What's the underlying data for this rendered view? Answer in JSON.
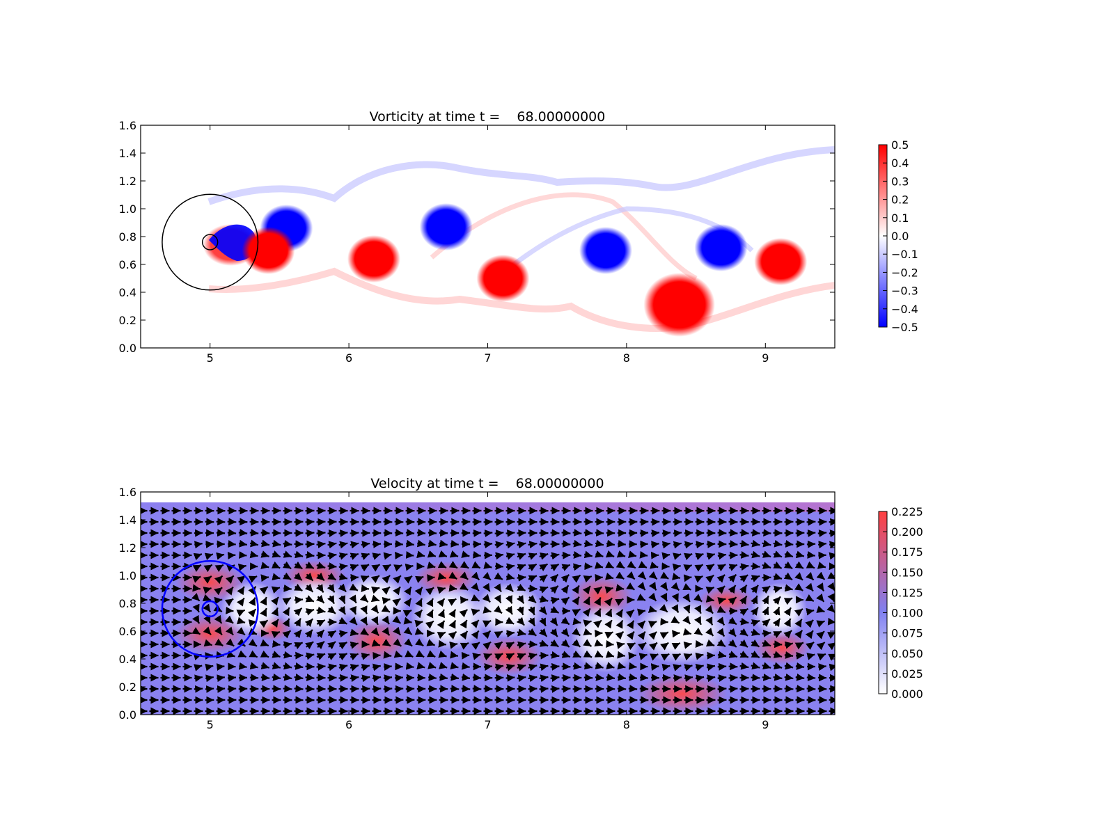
{
  "chart_data": [
    {
      "type": "heatmap",
      "title": "Vorticity at time t =    68.00000000",
      "xlabel": "",
      "ylabel": "",
      "xlim": [
        4.5,
        9.5
      ],
      "ylim": [
        0.0,
        1.6
      ],
      "xticks": [
        "5",
        "6",
        "7",
        "8",
        "9"
      ],
      "yticks": [
        "0.0",
        "0.2",
        "0.4",
        "0.6",
        "0.8",
        "1.0",
        "1.2",
        "1.4",
        "1.6"
      ],
      "grid": false,
      "colormap": "bwr",
      "colors": {
        "low": "#0000ff",
        "mid": "#ffffff",
        "high": "#ff0000"
      },
      "colorbar": {
        "range": [
          -0.5,
          0.5
        ],
        "ticks": [
          "0.5",
          "0.4",
          "0.3",
          "0.2",
          "0.1",
          "0.0",
          "−0.1",
          "−0.2",
          "−0.3",
          "−0.4",
          "−0.5"
        ]
      },
      "vortices": [
        {
          "x": 5.55,
          "y": 0.86,
          "sign": -1
        },
        {
          "x": 5.42,
          "y": 0.7,
          "sign": 1
        },
        {
          "x": 6.18,
          "y": 0.64,
          "sign": 1
        },
        {
          "x": 6.7,
          "y": 0.87,
          "sign": -1
        },
        {
          "x": 7.11,
          "y": 0.5,
          "sign": 1
        },
        {
          "x": 7.85,
          "y": 0.7,
          "sign": -1
        },
        {
          "x": 8.38,
          "y": 0.31,
          "sign": 1
        },
        {
          "x": 8.68,
          "y": 0.72,
          "sign": -1
        },
        {
          "x": 9.11,
          "y": 0.62,
          "sign": 1
        }
      ],
      "circles": [
        {
          "x": 5.0,
          "y": 0.76,
          "r": 0.345,
          "color": "#000000"
        },
        {
          "x": 5.0,
          "y": 0.76,
          "r": 0.055,
          "color": "#000000"
        }
      ]
    },
    {
      "type": "heatmap",
      "title": "Velocity at time t =    68.00000000",
      "xlabel": "",
      "ylabel": "",
      "xlim": [
        4.5,
        9.5
      ],
      "ylim": [
        0.0,
        1.6
      ],
      "xticks": [
        "5",
        "6",
        "7",
        "8",
        "9"
      ],
      "yticks": [
        "0.0",
        "0.2",
        "0.4",
        "0.6",
        "0.8",
        "1.0",
        "1.2",
        "1.4",
        "1.6"
      ],
      "grid": false,
      "colormap": "white-blue-red",
      "colors": {
        "low": "#ffffff",
        "mid": "#8080f0",
        "high": "#ff4040"
      },
      "colorbar": {
        "range": [
          0.0,
          0.225
        ],
        "ticks": [
          "0.225",
          "0.200",
          "0.175",
          "0.150",
          "0.125",
          "0.100",
          "0.075",
          "0.050",
          "0.025",
          "0.000"
        ]
      },
      "circles": [
        {
          "x": 5.0,
          "y": 0.76,
          "r": 0.345,
          "color": "#0000ff"
        },
        {
          "x": 5.0,
          "y": 0.76,
          "r": 0.055,
          "color": "#0000ff"
        }
      ],
      "quiver": true
    }
  ]
}
